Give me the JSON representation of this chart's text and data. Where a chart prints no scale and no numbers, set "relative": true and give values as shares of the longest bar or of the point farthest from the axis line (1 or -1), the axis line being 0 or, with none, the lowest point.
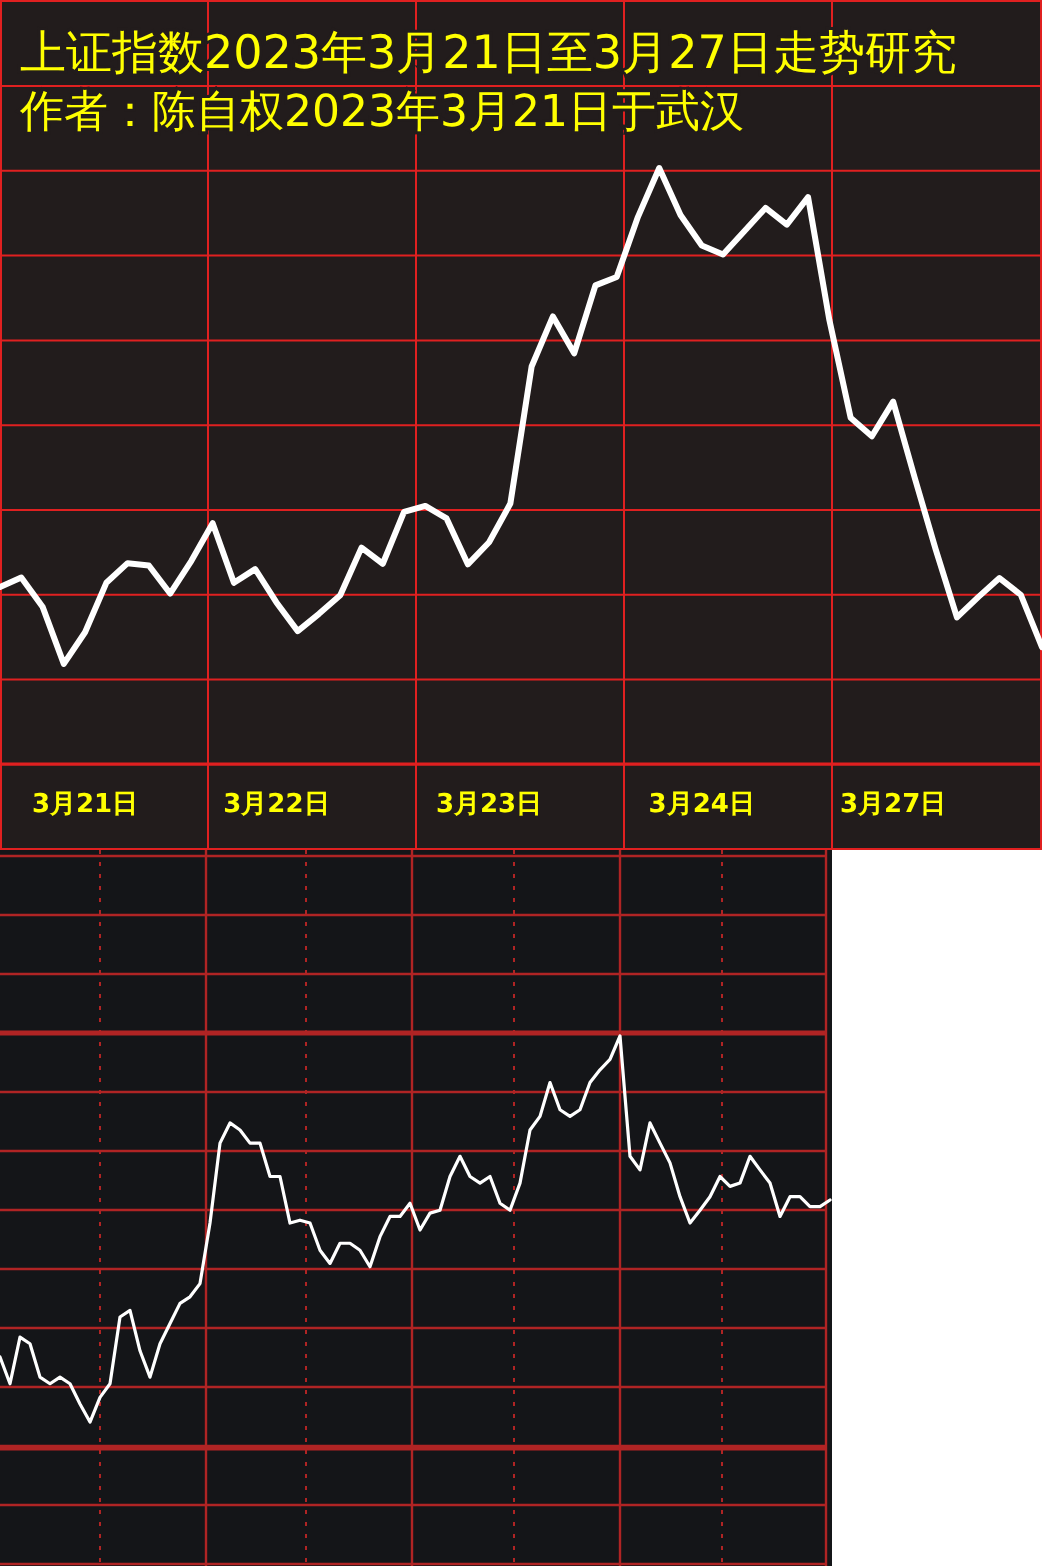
{
  "chart_data": [
    {
      "type": "line",
      "title": "上证指数2023年3月21日至3月27日走势研究",
      "subtitle": "作者：陈自权2023年3月21日于武汉",
      "relative": true,
      "grid": true,
      "categories": [
        null,
        null,
        null,
        null,
        "3月21日",
        null,
        null,
        null,
        null,
        null,
        null,
        null,
        null,
        "3月22日",
        null,
        null,
        null,
        null,
        null,
        null,
        null,
        null,
        null,
        "3月23日",
        null,
        null,
        null,
        null,
        null,
        null,
        null,
        null,
        null,
        "3月24日",
        null,
        null,
        null,
        null,
        null,
        null,
        null,
        null,
        "3月27日",
        null,
        null,
        null,
        null,
        null,
        null,
        null
      ],
      "series": [
        {
          "color": "#ffffff",
          "values": [
            0.297,
            0.313,
            0.264,
            0.168,
            0.221,
            0.304,
            0.337,
            0.333,
            0.286,
            0.341,
            0.404,
            0.304,
            0.327,
            0.271,
            0.223,
            0.252,
            0.283,
            0.363,
            0.336,
            0.423,
            0.433,
            0.412,
            0.335,
            0.372,
            0.437,
            0.667,
            0.751,
            0.689,
            0.803,
            0.817,
            0.918,
            1,
            0.921,
            0.87,
            0.855,
            0.894,
            0.933,
            0.905,
            0.951,
            0.745,
            0.581,
            0.55,
            0.608,
            0.482,
            0.36,
            0.246,
            0.28,
            0.312,
            0.284,
            0.196
          ]
        }
      ]
    },
    {
      "type": "line",
      "relative": true,
      "grid": true,
      "categories": [
        null,
        null,
        null,
        null,
        null,
        null,
        null,
        null,
        null,
        null,
        null,
        null,
        null,
        null,
        null,
        null,
        null,
        null,
        null,
        null,
        null,
        null,
        null,
        null,
        null,
        null,
        null,
        null,
        null,
        null,
        null,
        null,
        null,
        null,
        null,
        null,
        null,
        null,
        null,
        null,
        null,
        null,
        null,
        null,
        null,
        null,
        null,
        null,
        null,
        null,
        null,
        null,
        null,
        null,
        null,
        null,
        null,
        null,
        null,
        null,
        null,
        null,
        null,
        null,
        null,
        null,
        null,
        null,
        null,
        null,
        null,
        null,
        null,
        null,
        null,
        null,
        null,
        null,
        null,
        null,
        null,
        null,
        null,
        null
      ],
      "series": [
        {
          "color": "#ffffff",
          "values": [
            0.221,
            0.156,
            0.269,
            0.253,
            0.172,
            0.156,
            0.172,
            0.156,
            0.107,
            0.063,
            0.123,
            0.156,
            0.318,
            0.334,
            0.236,
            0.172,
            0.253,
            0.302,
            0.351,
            0.367,
            0.399,
            0.546,
            0.74,
            0.789,
            0.772,
            0.74,
            0.74,
            0.659,
            0.659,
            0.546,
            0.553,
            0.546,
            0.48,
            0.448,
            0.497,
            0.497,
            0.48,
            0.44,
            0.513,
            0.562,
            0.562,
            0.594,
            0.529,
            0.57,
            0.577,
            0.659,
            0.708,
            0.659,
            0.643,
            0.659,
            0.594,
            0.577,
            0.643,
            0.772,
            0.805,
            0.887,
            0.821,
            0.805,
            0.821,
            0.887,
            0.918,
            0.943,
            1,
            0.708,
            0.675,
            0.789,
            0.74,
            0.692,
            0.61,
            0.546,
            0.577,
            0.61,
            0.659,
            0.635,
            0.643,
            0.708,
            0.675,
            0.643,
            0.562,
            0.61,
            0.61,
            0.586,
            0.586,
            0.602
          ]
        }
      ]
    }
  ]
}
